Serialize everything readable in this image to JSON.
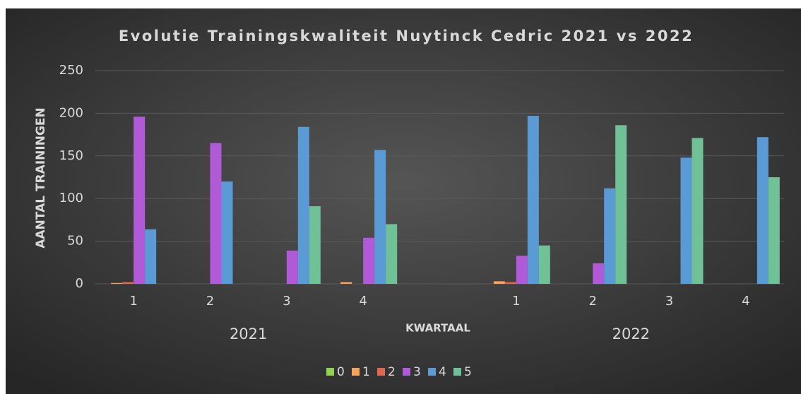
{
  "chart_data": {
    "type": "bar",
    "title": "Evolutie Trainingskwaliteit Nuytinck Cedric 2021 vs 2022",
    "xlabel": "KWARTAAL",
    "ylabel": "AANTAL TRAININGEN",
    "categories": [
      "1",
      "2",
      "3",
      "4",
      null,
      "1",
      "2",
      "3",
      "4"
    ],
    "groups": [
      "2021",
      "2022"
    ],
    "series": [
      {
        "name": "0",
        "color": "#92d050",
        "values": [
          0,
          0,
          0,
          0,
          null,
          0,
          0,
          0,
          0
        ]
      },
      {
        "name": "1",
        "color": "#f7a35c",
        "values": [
          1,
          0,
          0,
          2,
          null,
          3,
          0,
          0,
          0
        ]
      },
      {
        "name": "2",
        "color": "#e0664f",
        "values": [
          2,
          0,
          0,
          0,
          null,
          2,
          0,
          0,
          0
        ]
      },
      {
        "name": "3",
        "color": "#b15ad8",
        "values": [
          196,
          165,
          39,
          54,
          null,
          33,
          24,
          0,
          0
        ]
      },
      {
        "name": "4",
        "color": "#5b9bd5",
        "values": [
          64,
          120,
          184,
          157,
          null,
          197,
          112,
          148,
          172
        ]
      },
      {
        "name": "5",
        "color": "#70c195",
        "values": [
          0,
          0,
          91,
          70,
          null,
          45,
          186,
          171,
          125
        ]
      }
    ],
    "ylim": [
      0,
      250
    ],
    "yticks": [
      0,
      50,
      100,
      150,
      200,
      250
    ],
    "grid": true,
    "legend": "bottom"
  }
}
